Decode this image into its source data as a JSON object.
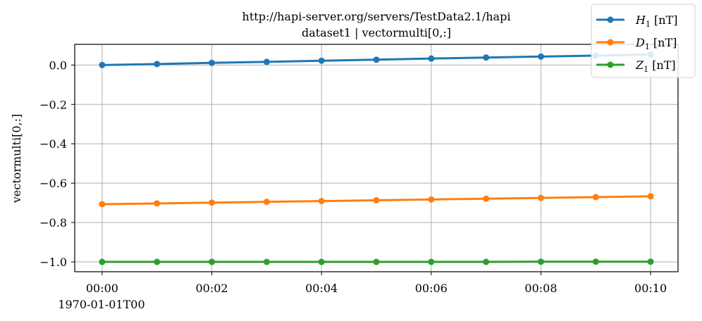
{
  "chart_data": {
    "type": "line",
    "title": "http://hapi-server.org/servers/TestData2.1/hapi",
    "subtitle": "dataset1 | vectormulti[0,:]",
    "ylabel": "vectormulti[0,:]",
    "xlabel": "",
    "x_offset_label": "1970-01-01T00",
    "x": [
      0,
      1,
      2,
      3,
      4,
      5,
      6,
      7,
      8,
      9,
      10
    ],
    "x_ticks": [
      0,
      2,
      4,
      6,
      8,
      10
    ],
    "x_tick_labels": [
      "00:00",
      "00:02",
      "00:04",
      "00:06",
      "00:08",
      "00:10"
    ],
    "xlim": [
      -0.5,
      10.5
    ],
    "y_ticks": [
      0.0,
      -0.2,
      -0.4,
      -0.6,
      -0.8,
      -1.0
    ],
    "y_tick_labels": [
      "0.0",
      "−0.2",
      "−0.4",
      "−0.6",
      "−0.8",
      "−1.0"
    ],
    "ylim": [
      -1.05,
      0.105
    ],
    "grid": true,
    "legend_position": "top-right",
    "series": [
      {
        "name": "H",
        "subscript": "1",
        "unit": " [nT]",
        "color": "#1f77b4",
        "values": [
          0.0,
          0.005,
          0.011,
          0.016,
          0.022,
          0.027,
          0.033,
          0.038,
          0.043,
          0.048,
          0.053
        ]
      },
      {
        "name": "D",
        "subscript": "1",
        "unit": " [nT]",
        "color": "#ff7f0e",
        "values": [
          -0.707,
          -0.703,
          -0.699,
          -0.695,
          -0.691,
          -0.687,
          -0.683,
          -0.679,
          -0.675,
          -0.671,
          -0.667
        ]
      },
      {
        "name": "Z",
        "subscript": "1",
        "unit": " [nT]",
        "color": "#2ca02c",
        "values": [
          -1.0,
          -1.0,
          -1.0,
          -1.0,
          -1.0,
          -1.0,
          -1.0,
          -1.0,
          -0.999,
          -0.999,
          -0.999
        ]
      }
    ]
  }
}
